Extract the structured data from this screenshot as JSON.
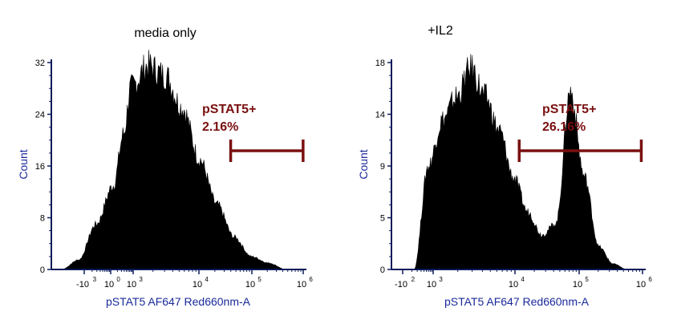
{
  "colors": {
    "axis": "#0a1a5a",
    "fill": "#000000",
    "gate": "#7a1010",
    "label": "#1a2a9a"
  },
  "chart_data": [
    {
      "type": "area",
      "title": "media only",
      "xlabel": "pSTAT5 AF647 Red660nm-A",
      "ylabel": "Count",
      "ylim": [
        0,
        32
      ],
      "yticks": [
        "0",
        "8",
        "16",
        "24",
        "32"
      ],
      "xscale": "log",
      "xticks": [
        {
          "base": "-10",
          "exp": "3"
        },
        {
          "base": "10",
          "exp": "0"
        },
        {
          "base": "10",
          "exp": "3"
        },
        {
          "base": "10",
          "exp": "4"
        },
        {
          "base": "10",
          "exp": "5"
        },
        {
          "base": "10",
          "exp": "6"
        }
      ],
      "x": [
        -1.0,
        -0.5,
        0.0,
        0.5,
        0.8,
        1.0,
        1.5,
        2.0,
        2.5,
        3.0,
        3.5,
        4.0,
        4.5,
        5.0,
        5.5
      ],
      "values": [
        0,
        1.5,
        7,
        13,
        21,
        28,
        31.5,
        30,
        25,
        17,
        10,
        5,
        2,
        1,
        0
      ],
      "gate": {
        "name": "pSTAT5+",
        "percent": "2.16%",
        "range": [
          3.9,
          6.0
        ]
      }
    },
    {
      "type": "area",
      "title": "+IL2",
      "xlabel": "pSTAT5 AF647 Red660nm-A",
      "ylabel": "Count",
      "ylim": [
        0,
        18
      ],
      "yticks": [
        "0",
        "5",
        "9",
        "14",
        "18"
      ],
      "xscale": "log",
      "xticks": [
        {
          "base": "-10",
          "exp": "2"
        },
        {
          "base": "10",
          "exp": "3"
        },
        {
          "base": "10",
          "exp": "4"
        },
        {
          "base": "10",
          "exp": "5"
        },
        {
          "base": "10",
          "exp": "6"
        }
      ],
      "x": [
        2.0,
        2.25,
        2.5,
        2.75,
        3.0,
        3.25,
        3.5,
        3.75,
        4.0,
        4.25,
        4.5,
        4.75,
        5.0,
        5.25,
        5.5,
        5.75
      ],
      "values": [
        0,
        9,
        13,
        15,
        17.5,
        15,
        12,
        8,
        5,
        3,
        4,
        15.5,
        8,
        2,
        0.5,
        0
      ],
      "gate": {
        "name": "pSTAT5+",
        "percent": "26.16%",
        "range": [
          3.85,
          6.0
        ]
      }
    }
  ]
}
